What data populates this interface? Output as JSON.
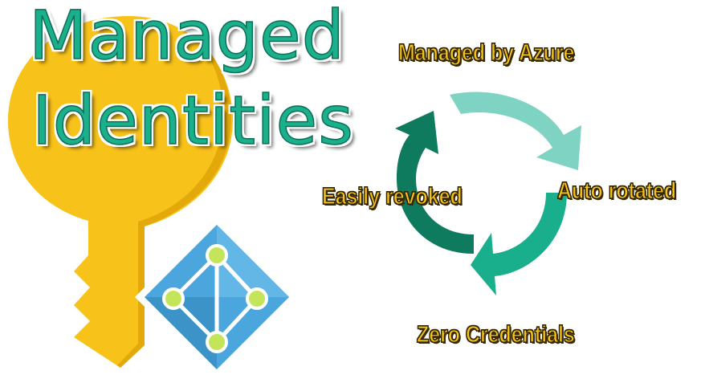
{
  "title": {
    "line1": "Managed",
    "line2": "Identities"
  },
  "cycle": {
    "top": "Managed by Azure",
    "right": "Auto rotated",
    "bottom": "Zero Credentials",
    "left": "Easily revoked"
  },
  "icons": {
    "key": "key-icon",
    "identity": "azure-identity-icon",
    "cycle": "refresh-cycle-icon"
  },
  "colors": {
    "key_yellow": "#f7c21a",
    "key_yellow_dark": "#e0a70a",
    "title_green": "#1ab08c",
    "arrow_light": "#7fd3c3",
    "arrow_mid": "#19ae8c",
    "arrow_dark": "#0e7a5e",
    "identity_blue": "#4aa6dc",
    "node_green": "#c4e55a",
    "label_yellow": "#f5c21b"
  }
}
